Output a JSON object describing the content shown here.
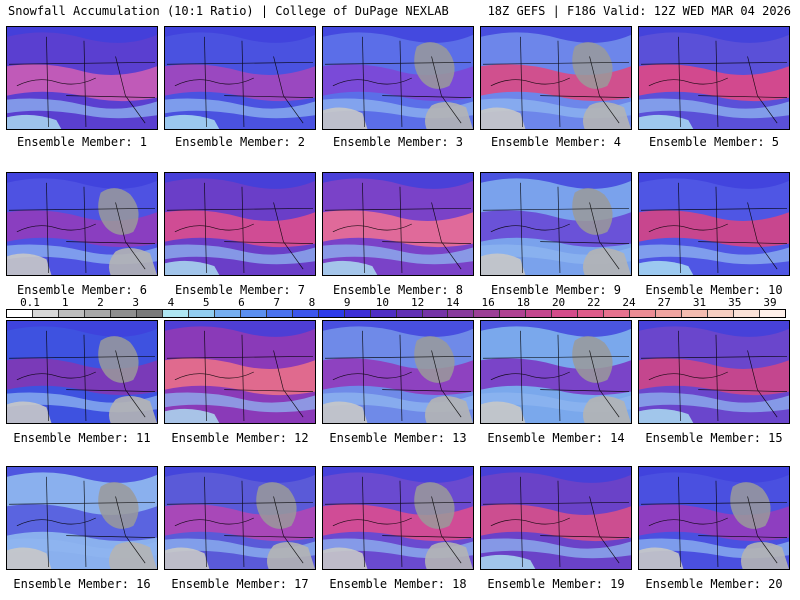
{
  "header": {
    "left": "Snowfall Accumulation (10:1 Ratio) | College of DuPage NEXLAB",
    "right": "18Z GEFS | F186 Valid: 12Z WED MAR 04 2026"
  },
  "members": [
    {
      "label": "Ensemble Member: 1",
      "band": "#c05ab8",
      "base": "#5a3fd0",
      "gray": false
    },
    {
      "label": "Ensemble Member: 2",
      "band": "#9a48c0",
      "base": "#4a52e0",
      "gray": false
    },
    {
      "label": "Ensemble Member: 3",
      "band": "#7a4ad8",
      "base": "#5b6ee8",
      "gray": true
    },
    {
      "label": "Ensemble Member: 4",
      "band": "#d0508e",
      "base": "#6d86ea",
      "gray": true
    },
    {
      "label": "Ensemble Member: 5",
      "band": "#d2498e",
      "base": "#5a50d8",
      "gray": false
    },
    {
      "label": "Ensemble Member: 6",
      "band": "#8a3ec0",
      "base": "#4e52e2",
      "gray": true
    },
    {
      "label": "Ensemble Member: 7",
      "band": "#d04c94",
      "base": "#6a3ec8",
      "gray": false
    },
    {
      "label": "Ensemble Member: 8",
      "band": "#e06a9a",
      "base": "#7a42c8",
      "gray": false
    },
    {
      "label": "Ensemble Member: 9",
      "band": "#6a52d8",
      "base": "#7aa2ec",
      "gray": true
    },
    {
      "label": "Ensemble Member: 10",
      "band": "#c8468e",
      "base": "#4f56e4",
      "gray": false
    },
    {
      "label": "Ensemble Member: 11",
      "band": "#7a3ab8",
      "base": "#3e52e0",
      "gray": true
    },
    {
      "label": "Ensemble Member: 12",
      "band": "#e06a8e",
      "base": "#8a3ab8",
      "gray": false
    },
    {
      "label": "Ensemble Member: 13",
      "band": "#8e42c0",
      "base": "#6f8ae8",
      "gray": true
    },
    {
      "label": "Ensemble Member: 14",
      "band": "#7a44c8",
      "base": "#7aa8ec",
      "gray": true
    },
    {
      "label": "Ensemble Member: 15",
      "band": "#c4468e",
      "base": "#6a46cc",
      "gray": false
    },
    {
      "label": "Ensemble Member: 16",
      "band": "#5a64e0",
      "base": "#8ab0ee",
      "gray": true
    },
    {
      "label": "Ensemble Member: 17",
      "band": "#a848b8",
      "base": "#5a5ad8",
      "gray": true
    },
    {
      "label": "Ensemble Member: 18",
      "band": "#d04c96",
      "base": "#6a4ad0",
      "gray": true
    },
    {
      "label": "Ensemble Member: 19",
      "band": "#cc4e90",
      "base": "#6a42c8",
      "gray": false
    },
    {
      "label": "Ensemble Member: 20",
      "band": "#8e3ec0",
      "base": "#4a50e0",
      "gray": true
    }
  ],
  "legend": {
    "labels": [
      "0.1",
      "1",
      "2",
      "3",
      "4",
      "5",
      "6",
      "7",
      "8",
      "9",
      "10",
      "12",
      "14",
      "16",
      "18",
      "20",
      "22",
      "24",
      "27",
      "31",
      "35",
      "39"
    ],
    "colors": [
      "#ffffff",
      "#d8d8d8",
      "#bdbdbd",
      "#a8a8a8",
      "#8e8e8e",
      "#7a7a7a",
      "#afe6f2",
      "#92cdf0",
      "#76aef0",
      "#5b8ff0",
      "#4a72ee",
      "#3c56ec",
      "#2d3bea",
      "#3d2fd6",
      "#4f2fc4",
      "#6230b4",
      "#7534a6",
      "#883a9c",
      "#9c3f96",
      "#b04192",
      "#c4468e",
      "#d34c8a",
      "#de5c8a",
      "#e6728e",
      "#ec8c94",
      "#f0a4a0",
      "#f4bcb0",
      "#f7cfc2",
      "#fbe2d8",
      "#fff0ea"
    ]
  }
}
